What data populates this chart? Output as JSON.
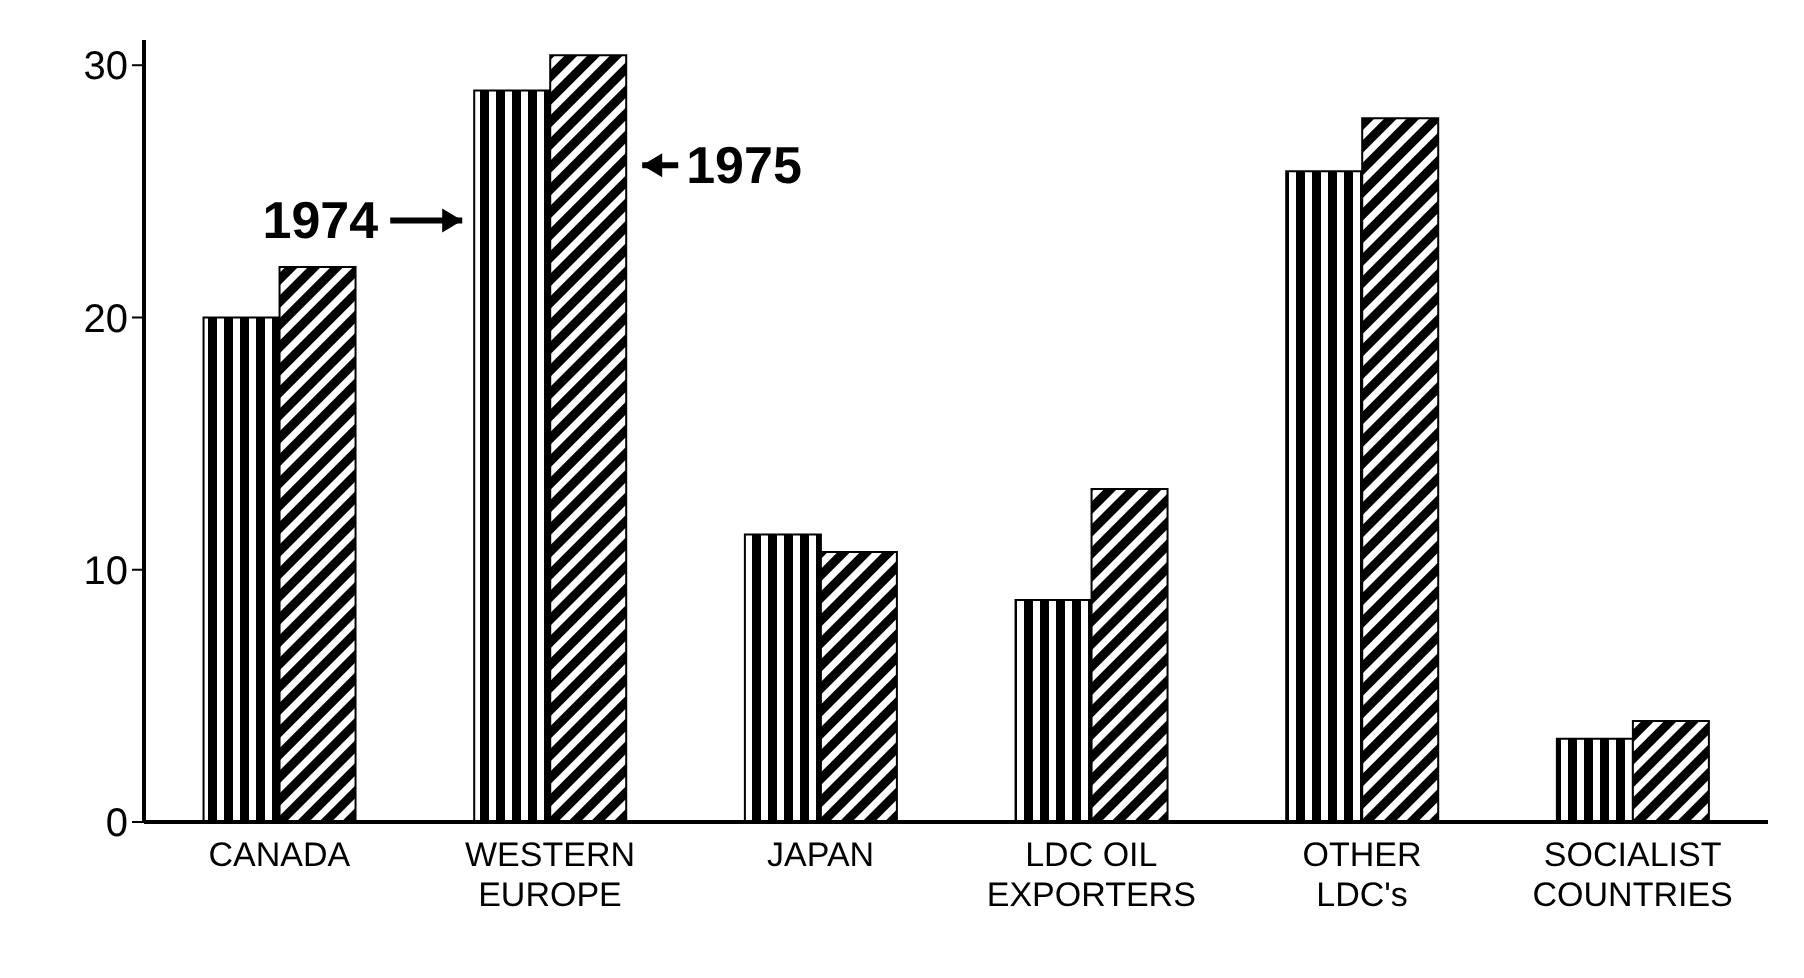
{
  "chart_data": {
    "type": "bar",
    "categories": [
      "CANADA",
      "WESTERN\nEUROPE",
      "JAPAN",
      "LDC OIL\nEXPORTERS",
      "OTHER\nLDC's",
      "SOCIALIST\nCOUNTRIES"
    ],
    "series": [
      {
        "name": "1974",
        "color": "#000000",
        "values": [
          20,
          29,
          11.4,
          8.8,
          25.8,
          3.3
        ]
      },
      {
        "name": "1975",
        "color": "#000000",
        "values": [
          22,
          30.4,
          10.7,
          13.2,
          27.9,
          4.0
        ]
      }
    ],
    "ylim": [
      0,
      31
    ],
    "yticks": [
      0,
      10,
      20,
      30
    ],
    "grid": false,
    "legend": false
  }
}
